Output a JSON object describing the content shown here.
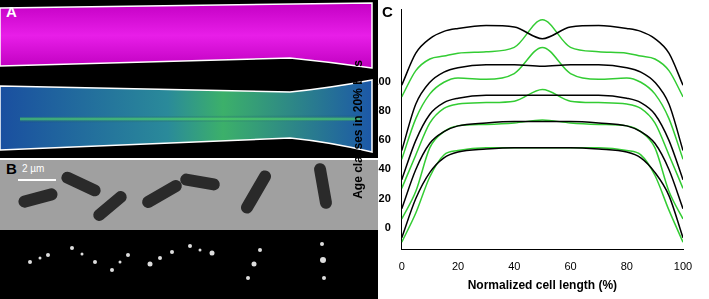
{
  "panels": [
    {
      "label": "A"
    },
    {
      "label": "B",
      "scale_bar": "2 µm"
    },
    {
      "label": "C"
    }
  ],
  "chart_data": {
    "type": "line",
    "x_label": "Normalized cell length (%)",
    "y_label": "Age classes in 20% bins",
    "x": [
      0,
      5,
      10,
      15,
      20,
      30,
      40,
      50,
      60,
      70,
      80,
      85,
      90,
      95,
      100
    ],
    "xlim": [
      0,
      100
    ],
    "xticks": [
      0,
      20,
      40,
      60,
      80,
      100
    ],
    "ylim": [
      -15,
      150
    ],
    "yticks": [
      0,
      20,
      40,
      60,
      80,
      100
    ],
    "grid": false,
    "marker": "none",
    "series": [
      {
        "color": "#000000",
        "values": [
          -7,
          20,
          38,
          48,
          52,
          54,
          55,
          55,
          55,
          54,
          52,
          48,
          38,
          22,
          -7
        ]
      },
      {
        "color": "#33cc33",
        "values": [
          -10,
          10,
          35,
          50,
          53,
          55,
          55,
          55,
          55,
          55,
          53,
          50,
          36,
          12,
          -10
        ]
      },
      {
        "color": "#000000",
        "values": [
          13,
          40,
          58,
          66,
          70,
          72,
          73,
          73,
          73,
          72,
          70,
          66,
          58,
          40,
          13
        ]
      },
      {
        "color": "#33cc33",
        "values": [
          6,
          25,
          55,
          66,
          70,
          71,
          72,
          74,
          72,
          71,
          70,
          66,
          55,
          25,
          6
        ]
      },
      {
        "color": "#000000",
        "values": [
          33,
          60,
          78,
          86,
          89,
          91,
          91,
          91,
          91,
          91,
          89,
          86,
          78,
          60,
          33
        ]
      },
      {
        "color": "#33cc33",
        "values": [
          27,
          50,
          72,
          82,
          85,
          86,
          87,
          95,
          87,
          86,
          85,
          82,
          72,
          50,
          27
        ]
      },
      {
        "color": "#000000",
        "values": [
          53,
          85,
          100,
          107,
          110,
          112,
          112,
          111,
          112,
          112,
          110,
          107,
          100,
          85,
          53
        ]
      },
      {
        "color": "#33cc33",
        "values": [
          47,
          75,
          92,
          100,
          103,
          102,
          106,
          124,
          106,
          102,
          103,
          100,
          92,
          75,
          47
        ]
      },
      {
        "color": "#000000",
        "values": [
          98,
          120,
          130,
          135,
          137,
          139,
          138,
          130,
          138,
          139,
          137,
          135,
          130,
          120,
          98
        ]
      },
      {
        "color": "#33cc33",
        "values": [
          90,
          108,
          116,
          118,
          120,
          121,
          124,
          143,
          124,
          121,
          120,
          118,
          116,
          108,
          90
        ]
      }
    ]
  }
}
